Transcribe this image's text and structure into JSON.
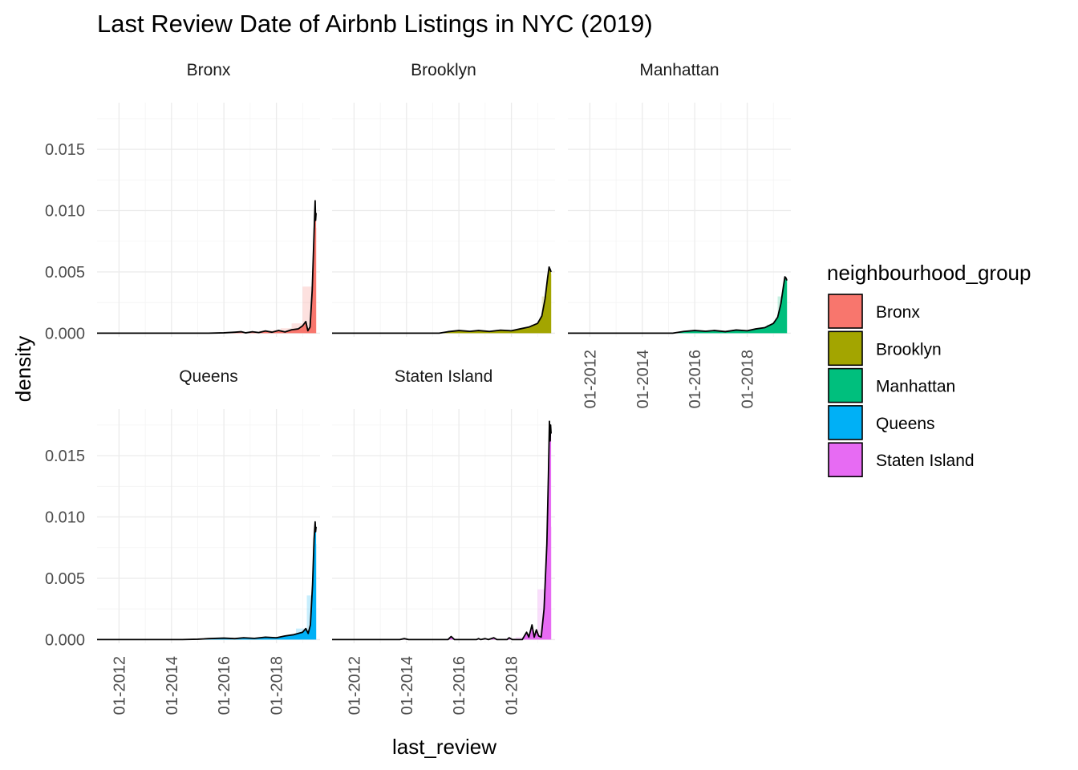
{
  "chart_data": {
    "type": "area",
    "title": "Last Review Date of Airbnb Listings in NYC (2019)",
    "xlabel": "last_review",
    "ylabel": "density",
    "x_tick_labels": [
      "01-2012",
      "01-2014",
      "01-2016",
      "01-2018"
    ],
    "x_tick_dates": [
      "2012-01-01",
      "2014-01-01",
      "2016-01-01",
      "2018-01-01"
    ],
    "xlim": [
      "2011-03-01",
      "2019-09-01"
    ],
    "ylim": [
      -0.0003,
      0.0188
    ],
    "y_ticks": [
      0.0,
      0.005,
      0.01,
      0.015
    ],
    "y_tick_labels": [
      "0.000",
      "0.005",
      "0.010",
      "0.015"
    ],
    "grid": true,
    "facet_by": "neighbourhood_group",
    "legend": {
      "title": "neighbourhood_group",
      "position": "right",
      "items": [
        {
          "label": "Bronx",
          "color": "#F8766D"
        },
        {
          "label": "Brooklyn",
          "color": "#A3A500"
        },
        {
          "label": "Manhattan",
          "color": "#00BF7D"
        },
        {
          "label": "Queens",
          "color": "#00B0F6"
        },
        {
          "label": "Staten Island",
          "color": "#E76BF3"
        }
      ]
    },
    "histogram_bars": {
      "bin_width_days": 150,
      "approx": true
    },
    "panels": [
      {
        "name": "Bronx",
        "color": "#F8766D",
        "bars": [
          {
            "start": "2017-05-01",
            "end": "2017-10-01",
            "density": 0.0002
          },
          {
            "start": "2017-10-01",
            "end": "2018-03-01",
            "density": 0.00025
          },
          {
            "start": "2018-03-01",
            "end": "2018-08-01",
            "density": 0.0004
          },
          {
            "start": "2018-08-01",
            "end": "2019-01-01",
            "density": 0.0008
          },
          {
            "start": "2019-01-01",
            "end": "2019-06-01",
            "density": 0.0038
          },
          {
            "start": "2019-06-01",
            "end": "2019-07-15",
            "density": 0.0086
          }
        ],
        "density": [
          [
            "2011-03-01",
            0.0
          ],
          [
            "2015-06-01",
            0.0
          ],
          [
            "2016-01-01",
            3e-05
          ],
          [
            "2016-06-01",
            8e-05
          ],
          [
            "2016-09-01",
            0.00012
          ],
          [
            "2016-11-01",
            3e-05
          ],
          [
            "2017-02-01",
            0.00012
          ],
          [
            "2017-05-01",
            5e-05
          ],
          [
            "2017-08-01",
            0.00018
          ],
          [
            "2017-11-01",
            8e-05
          ],
          [
            "2018-02-01",
            0.00022
          ],
          [
            "2018-05-01",
            0.0001
          ],
          [
            "2018-08-01",
            0.00028
          ],
          [
            "2018-11-01",
            0.00035
          ],
          [
            "2019-01-01",
            0.0006
          ],
          [
            "2019-02-15",
            0.00095
          ],
          [
            "2019-03-15",
            0.0002
          ],
          [
            "2019-04-15",
            0.0005
          ],
          [
            "2019-05-15",
            0.0035
          ],
          [
            "2019-06-10",
            0.0082
          ],
          [
            "2019-06-25",
            0.0108
          ],
          [
            "2019-07-01",
            0.0092
          ],
          [
            "2019-07-08",
            0.0098
          ]
        ]
      },
      {
        "name": "Brooklyn",
        "color": "#A3A500",
        "bars": [
          {
            "start": "2015-06-01",
            "end": "2015-11-01",
            "density": 0.0001
          },
          {
            "start": "2015-11-01",
            "end": "2016-04-01",
            "density": 0.00015
          },
          {
            "start": "2016-04-01",
            "end": "2016-09-01",
            "density": 0.00018
          },
          {
            "start": "2016-09-01",
            "end": "2017-02-01",
            "density": 0.00015
          },
          {
            "start": "2017-02-01",
            "end": "2017-07-01",
            "density": 0.0002
          },
          {
            "start": "2017-07-01",
            "end": "2017-12-01",
            "density": 0.00022
          },
          {
            "start": "2017-12-01",
            "end": "2018-05-01",
            "density": 0.00025
          },
          {
            "start": "2018-05-01",
            "end": "2018-10-01",
            "density": 0.0004
          },
          {
            "start": "2018-10-01",
            "end": "2019-03-01",
            "density": 0.0007
          },
          {
            "start": "2019-03-01",
            "end": "2019-06-01",
            "density": 0.003
          },
          {
            "start": "2019-06-01",
            "end": "2019-07-15",
            "density": 0.0048
          }
        ],
        "density": [
          [
            "2011-03-01",
            0.0
          ],
          [
            "2015-04-01",
            0.0
          ],
          [
            "2015-08-01",
            0.00012
          ],
          [
            "2016-01-01",
            0.00022
          ],
          [
            "2016-06-01",
            0.00015
          ],
          [
            "2016-10-01",
            0.00022
          ],
          [
            "2017-03-01",
            0.00014
          ],
          [
            "2017-08-01",
            0.00025
          ],
          [
            "2018-01-01",
            0.0002
          ],
          [
            "2018-05-01",
            0.00035
          ],
          [
            "2018-09-01",
            0.0005
          ],
          [
            "2019-01-01",
            0.0008
          ],
          [
            "2019-03-01",
            0.0014
          ],
          [
            "2019-04-15",
            0.0028
          ],
          [
            "2019-05-20",
            0.0045
          ],
          [
            "2019-06-10",
            0.0054
          ],
          [
            "2019-06-25",
            0.0052
          ],
          [
            "2019-07-08",
            0.005
          ]
        ]
      },
      {
        "name": "Manhattan",
        "color": "#00BF7D",
        "bars": [
          {
            "start": "2015-06-01",
            "end": "2015-11-01",
            "density": 0.0001
          },
          {
            "start": "2015-11-01",
            "end": "2016-04-01",
            "density": 0.00015
          },
          {
            "start": "2016-04-01",
            "end": "2016-09-01",
            "density": 0.00018
          },
          {
            "start": "2016-09-01",
            "end": "2017-02-01",
            "density": 0.00015
          },
          {
            "start": "2017-02-01",
            "end": "2017-07-01",
            "density": 0.0002
          },
          {
            "start": "2017-07-01",
            "end": "2017-12-01",
            "density": 0.00022
          },
          {
            "start": "2017-12-01",
            "end": "2018-05-01",
            "density": 0.00025
          },
          {
            "start": "2018-05-01",
            "end": "2018-10-01",
            "density": 0.0004
          },
          {
            "start": "2018-10-01",
            "end": "2019-03-01",
            "density": 0.0007
          },
          {
            "start": "2019-03-01",
            "end": "2019-06-01",
            "density": 0.003
          },
          {
            "start": "2019-06-01",
            "end": "2019-07-15",
            "density": 0.0043
          }
        ],
        "density": [
          [
            "2011-03-01",
            0.0
          ],
          [
            "2015-03-01",
            0.0
          ],
          [
            "2015-08-01",
            0.00014
          ],
          [
            "2016-01-01",
            0.00022
          ],
          [
            "2016-06-01",
            0.00016
          ],
          [
            "2016-10-01",
            0.00022
          ],
          [
            "2017-03-01",
            0.00013
          ],
          [
            "2017-08-01",
            0.00026
          ],
          [
            "2018-01-01",
            0.0002
          ],
          [
            "2018-05-01",
            0.00035
          ],
          [
            "2018-09-01",
            0.00045
          ],
          [
            "2019-01-01",
            0.0008
          ],
          [
            "2019-03-01",
            0.0013
          ],
          [
            "2019-04-15",
            0.0024
          ],
          [
            "2019-05-20",
            0.0038
          ],
          [
            "2019-06-10",
            0.0046
          ],
          [
            "2019-06-25",
            0.0045
          ],
          [
            "2019-07-08",
            0.0043
          ]
        ]
      },
      {
        "name": "Queens",
        "color": "#00B0F6",
        "bars": [
          {
            "start": "2015-06-01",
            "end": "2015-11-01",
            "density": 8e-05
          },
          {
            "start": "2015-11-01",
            "end": "2016-04-01",
            "density": 0.0001
          },
          {
            "start": "2016-04-01",
            "end": "2016-09-01",
            "density": 0.00012
          },
          {
            "start": "2016-09-01",
            "end": "2017-02-01",
            "density": 0.00012
          },
          {
            "start": "2017-02-01",
            "end": "2017-07-01",
            "density": 0.00015
          },
          {
            "start": "2017-07-01",
            "end": "2017-12-01",
            "density": 0.00018
          },
          {
            "start": "2017-12-01",
            "end": "2018-05-01",
            "density": 0.00022
          },
          {
            "start": "2018-05-01",
            "end": "2018-10-01",
            "density": 0.00035
          },
          {
            "start": "2018-10-01",
            "end": "2019-03-01",
            "density": 0.0009
          },
          {
            "start": "2019-03-01",
            "end": "2019-06-01",
            "density": 0.0036
          },
          {
            "start": "2019-06-01",
            "end": "2019-07-15",
            "density": 0.0078
          }
        ],
        "density": [
          [
            "2011-03-01",
            0.0
          ],
          [
            "2014-06-01",
            0.0
          ],
          [
            "2015-01-01",
            3e-05
          ],
          [
            "2015-06-01",
            8e-05
          ],
          [
            "2016-01-01",
            0.00012
          ],
          [
            "2016-06-01",
            8e-05
          ],
          [
            "2016-10-01",
            0.00015
          ],
          [
            "2017-03-01",
            0.0001
          ],
          [
            "2017-08-01",
            0.0002
          ],
          [
            "2018-01-01",
            0.00015
          ],
          [
            "2018-05-01",
            0.0003
          ],
          [
            "2018-09-01",
            0.0004
          ],
          [
            "2019-01-01",
            0.0006
          ],
          [
            "2019-02-15",
            0.0009
          ],
          [
            "2019-03-20",
            0.0005
          ],
          [
            "2019-04-20",
            0.0012
          ],
          [
            "2019-05-20",
            0.0045
          ],
          [
            "2019-06-10",
            0.0082
          ],
          [
            "2019-06-25",
            0.0096
          ],
          [
            "2019-07-01",
            0.0088
          ],
          [
            "2019-07-08",
            0.0092
          ]
        ]
      },
      {
        "name": "Staten Island",
        "color": "#E76BF3",
        "bars": [
          {
            "start": "2017-10-01",
            "end": "2018-03-01",
            "density": 0.0001
          },
          {
            "start": "2018-03-01",
            "end": "2018-08-01",
            "density": 0.0002
          },
          {
            "start": "2018-08-01",
            "end": "2019-01-01",
            "density": 0.0005
          },
          {
            "start": "2019-01-01",
            "end": "2019-06-01",
            "density": 0.0041
          },
          {
            "start": "2019-06-01",
            "end": "2019-07-15",
            "density": 0.0092
          }
        ],
        "density": [
          [
            "2011-03-01",
            0.0
          ],
          [
            "2013-10-01",
            0.0
          ],
          [
            "2013-12-01",
            8e-05
          ],
          [
            "2014-02-01",
            0.0
          ],
          [
            "2015-08-01",
            0.0
          ],
          [
            "2015-09-15",
            0.00025
          ],
          [
            "2015-11-01",
            0.0
          ],
          [
            "2016-09-01",
            0.0
          ],
          [
            "2016-10-01",
            8e-05
          ],
          [
            "2016-11-01",
            0.0
          ],
          [
            "2017-01-01",
            8e-05
          ],
          [
            "2017-02-15",
            0.0
          ],
          [
            "2017-05-01",
            0.00015
          ],
          [
            "2017-06-15",
            0.0
          ],
          [
            "2017-11-01",
            0.0
          ],
          [
            "2017-12-01",
            0.00015
          ],
          [
            "2018-01-15",
            0.0
          ],
          [
            "2018-06-01",
            0.0
          ],
          [
            "2018-08-01",
            0.0006
          ],
          [
            "2018-09-01",
            0.0002
          ],
          [
            "2018-10-15",
            0.0012
          ],
          [
            "2018-11-15",
            0.0002
          ],
          [
            "2018-12-15",
            0.0008
          ],
          [
            "2019-01-15",
            0.0003
          ],
          [
            "2019-02-20",
            0.0002
          ],
          [
            "2019-04-01",
            0.0025
          ],
          [
            "2019-05-10",
            0.0078
          ],
          [
            "2019-06-01",
            0.0135
          ],
          [
            "2019-06-15",
            0.0178
          ],
          [
            "2019-06-25",
            0.0162
          ],
          [
            "2019-07-01",
            0.0175
          ],
          [
            "2019-07-08",
            0.0168
          ]
        ]
      }
    ]
  }
}
